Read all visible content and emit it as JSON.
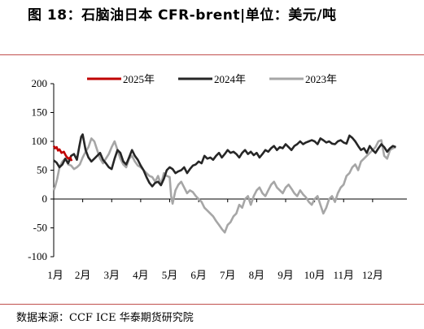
{
  "header": {
    "title": "图 18：石脑油日本 CFR-brent|单位：美元/吨"
  },
  "footer": {
    "source": "数据来源：CCF   ICE 华泰期货研究院"
  },
  "colors": {
    "rule": "#c0504d",
    "series_2025": "#c00000",
    "series_2024": "#262626",
    "series_2023": "#a6a6a6"
  },
  "chart_data": {
    "type": "line",
    "title": "",
    "xlabel": "",
    "ylabel": "",
    "ylim": [
      -100,
      200
    ],
    "yticks": [
      "200",
      "150",
      "100",
      "50",
      "0",
      "-50",
      "-100"
    ],
    "ytick_values": [
      200,
      150,
      100,
      50,
      0,
      -50,
      -100
    ],
    "xlim": [
      0,
      12
    ],
    "xticks": [
      "1月",
      "2月",
      "3月",
      "4月",
      "5月",
      "6月",
      "7月",
      "8月",
      "9月",
      "10月",
      "11月",
      "12月"
    ],
    "grid": false,
    "legend_position": "top",
    "series": [
      {
        "name": "2025年",
        "color": "#c00000",
        "x": [
          0.0,
          0.05,
          0.1,
          0.15,
          0.2,
          0.27,
          0.35,
          0.42,
          0.5,
          0.57,
          0.62
        ],
        "y": [
          92,
          88,
          90,
          84,
          86,
          80,
          82,
          75,
          70,
          72,
          66
        ]
      },
      {
        "name": "2024年",
        "color": "#262626",
        "x": [
          0.0,
          0.1,
          0.2,
          0.3,
          0.4,
          0.5,
          0.6,
          0.7,
          0.8,
          0.88,
          0.95,
          1.0,
          1.1,
          1.2,
          1.3,
          1.4,
          1.5,
          1.6,
          1.7,
          1.8,
          1.9,
          2.0,
          2.1,
          2.2,
          2.3,
          2.4,
          2.5,
          2.6,
          2.7,
          2.8,
          2.9,
          3.0,
          3.1,
          3.2,
          3.3,
          3.4,
          3.5,
          3.6,
          3.7,
          3.8,
          3.9,
          4.0,
          4.1,
          4.2,
          4.3,
          4.4,
          4.5,
          4.6,
          4.7,
          4.8,
          4.9,
          5.0,
          5.1,
          5.2,
          5.3,
          5.4,
          5.5,
          5.6,
          5.7,
          5.8,
          5.9,
          6.0,
          6.1,
          6.2,
          6.3,
          6.4,
          6.5,
          6.6,
          6.7,
          6.8,
          6.9,
          7.0,
          7.1,
          7.2,
          7.3,
          7.4,
          7.5,
          7.6,
          7.7,
          7.8,
          7.9,
          8.0,
          8.1,
          8.2,
          8.3,
          8.4,
          8.5,
          8.6,
          8.7,
          8.8,
          8.9,
          9.0,
          9.1,
          9.2,
          9.3,
          9.4,
          9.5,
          9.6,
          9.7,
          9.8,
          9.9,
          10.0,
          10.1,
          10.2,
          10.3,
          10.4,
          10.5,
          10.6,
          10.7,
          10.8,
          10.9,
          11.0,
          11.1,
          11.2,
          11.3,
          11.4,
          11.5,
          11.6,
          11.7,
          11.8
        ],
        "y": [
          67,
          63,
          55,
          60,
          70,
          62,
          75,
          78,
          68,
          90,
          108,
          112,
          85,
          72,
          65,
          70,
          75,
          80,
          68,
          62,
          55,
          52,
          70,
          85,
          80,
          65,
          60,
          72,
          85,
          75,
          68,
          58,
          50,
          38,
          28,
          22,
          28,
          30,
          24,
          35,
          50,
          55,
          52,
          45,
          48,
          50,
          55,
          45,
          52,
          58,
          60,
          65,
          62,
          75,
          70,
          72,
          68,
          75,
          80,
          72,
          78,
          85,
          80,
          82,
          78,
          72,
          80,
          85,
          78,
          82,
          76,
          80,
          72,
          78,
          85,
          82,
          88,
          92,
          85,
          90,
          88,
          95,
          90,
          85,
          92,
          95,
          100,
          95,
          98,
          100,
          102,
          100,
          95,
          105,
          102,
          98,
          100,
          96,
          95,
          100,
          102,
          98,
          96,
          110,
          106,
          100,
          92,
          85,
          88,
          80,
          92,
          85,
          80,
          88,
          95,
          90,
          82,
          88,
          92,
          90
        ],
        "y_scale_note": ""
      },
      {
        "name": "2023年",
        "color": "#a6a6a6",
        "x": [
          0.0,
          0.05,
          0.12,
          0.2,
          0.3,
          0.4,
          0.5,
          0.6,
          0.7,
          0.8,
          0.9,
          1.0,
          1.1,
          1.2,
          1.3,
          1.4,
          1.5,
          1.6,
          1.7,
          1.8,
          1.9,
          2.0,
          2.1,
          2.2,
          2.3,
          2.4,
          2.5,
          2.6,
          2.7,
          2.8,
          2.9,
          3.0,
          3.1,
          3.2,
          3.3,
          3.4,
          3.5,
          3.6,
          3.7,
          3.8,
          3.9,
          4.0,
          4.05,
          4.1,
          4.2,
          4.3,
          4.4,
          4.5,
          4.6,
          4.7,
          4.8,
          4.9,
          5.0,
          5.1,
          5.2,
          5.3,
          5.4,
          5.5,
          5.6,
          5.7,
          5.8,
          5.9,
          6.0,
          6.1,
          6.2,
          6.3,
          6.4,
          6.5,
          6.6,
          6.7,
          6.8,
          6.9,
          7.0,
          7.1,
          7.2,
          7.3,
          7.4,
          7.5,
          7.6,
          7.7,
          7.8,
          7.9,
          8.0,
          8.1,
          8.2,
          8.3,
          8.4,
          8.5,
          8.6,
          8.7,
          8.8,
          8.9,
          9.0,
          9.1,
          9.2,
          9.3,
          9.4,
          9.5,
          9.6,
          9.7,
          9.8,
          9.9,
          10.0,
          10.1,
          10.2,
          10.3,
          10.4,
          10.5,
          10.6,
          10.7,
          10.8,
          10.9,
          11.0,
          11.1,
          11.2,
          11.3,
          11.4,
          11.5,
          11.6,
          11.7,
          11.8
        ],
        "y": [
          15,
          22,
          35,
          55,
          65,
          70,
          60,
          58,
          52,
          55,
          60,
          72,
          82,
          90,
          105,
          100,
          85,
          70,
          62,
          70,
          78,
          90,
          100,
          85,
          70,
          60,
          55,
          70,
          75,
          65,
          58,
          55,
          50,
          45,
          40,
          38,
          30,
          40,
          25,
          45,
          40,
          38,
          5,
          -8,
          15,
          25,
          30,
          20,
          10,
          15,
          12,
          5,
          0,
          -5,
          -15,
          -20,
          -25,
          -30,
          -38,
          -45,
          -52,
          -58,
          -45,
          -40,
          -30,
          -25,
          -10,
          -15,
          0,
          5,
          -10,
          5,
          15,
          20,
          10,
          5,
          15,
          25,
          30,
          20,
          15,
          10,
          20,
          25,
          18,
          10,
          5,
          15,
          8,
          3,
          -5,
          -10,
          0,
          5,
          -10,
          -25,
          -15,
          0,
          5,
          -5,
          10,
          20,
          25,
          40,
          45,
          55,
          60,
          50,
          65,
          70,
          75,
          80,
          85,
          90,
          100,
          102,
          75,
          70,
          85,
          88,
          90
        ],
        "y_scale_note": ""
      }
    ]
  }
}
